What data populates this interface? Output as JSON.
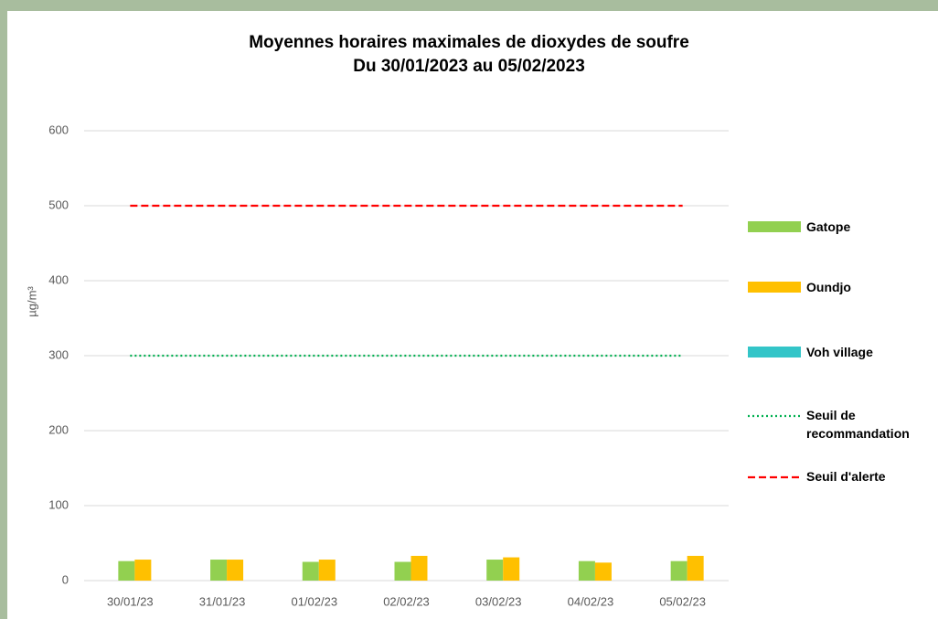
{
  "chart_data": {
    "type": "bar",
    "title": "Moyennes horaires maximales de dioxydes de soufre",
    "subtitle": "Du 30/01/2023 au 05/02/2023",
    "y_label": "µg/m³",
    "categories": [
      "30/01/23",
      "31/01/23",
      "01/02/23",
      "02/02/23",
      "03/02/23",
      "04/02/23",
      "05/02/23"
    ],
    "series": [
      {
        "name": "Gatope",
        "color": "#92d050",
        "values": [
          26,
          28,
          25,
          25,
          28,
          26,
          26
        ]
      },
      {
        "name": "Oundjo",
        "color": "#ffc000",
        "values": [
          28,
          28,
          28,
          33,
          31,
          24,
          33
        ]
      },
      {
        "name": "Voh village",
        "color": "#33c5c8",
        "values": [
          null,
          null,
          null,
          null,
          null,
          null,
          null
        ]
      },
      {
        "name": "Seuil de recommandation",
        "color": "#00b050",
        "type": "line",
        "dash": "dotted",
        "values": [
          300,
          300,
          300,
          300,
          300,
          300,
          300
        ]
      },
      {
        "name": "Seuil d'alerte",
        "color": "#ff0000",
        "type": "line",
        "dash": "dashed",
        "values": [
          500,
          500,
          500,
          500,
          500,
          500,
          500
        ]
      }
    ],
    "ylim": [
      0,
      600
    ],
    "yticks": [
      0,
      100,
      200,
      300,
      400,
      500,
      600
    ],
    "grid": true,
    "legend": "right"
  }
}
